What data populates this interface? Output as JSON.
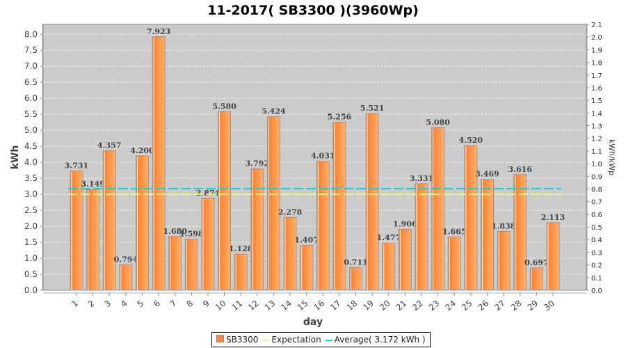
{
  "chart_data": {
    "type": "bar",
    "title": "11-2017( SB3300 )(3960Wp)",
    "xlabel": "day",
    "ylabel": "kWh",
    "y2label": "kWh/kWp",
    "categories": [
      "1",
      "2",
      "3",
      "4",
      "5",
      "6",
      "7",
      "8",
      "9",
      "10",
      "11",
      "12",
      "13",
      "14",
      "15",
      "16",
      "17",
      "18",
      "19",
      "20",
      "21",
      "22",
      "23",
      "24",
      "25",
      "26",
      "27",
      "28",
      "29",
      "30"
    ],
    "series": [
      {
        "name": "SB3300",
        "values": [
          3.731,
          3.149,
          4.357,
          0.794,
          4.2,
          7.923,
          1.68,
          1.598,
          2.874,
          5.58,
          1.128,
          3.792,
          5.424,
          2.278,
          1.407,
          4.031,
          5.256,
          0.711,
          5.521,
          1.477,
          1.906,
          3.331,
          5.08,
          1.665,
          4.52,
          3.469,
          1.838,
          3.616,
          0.697,
          2.113
        ],
        "color": "#ff8a3a"
      }
    ],
    "data_labels": [
      "3.731",
      "3.149",
      "4.357",
      "0.794",
      "4.200",
      "7.923",
      "1.680",
      "1.598",
      "2.874",
      "5.580",
      "1.128",
      "3.792",
      "5.424",
      "2.278",
      "1.407",
      "4.031",
      "5.256",
      "0.711",
      "5.521",
      "1.477",
      "1.906",
      "3.331",
      "5.080",
      "1.665",
      "4.520",
      "3.469",
      "1.838",
      "3.616",
      "0.697",
      "2.113"
    ],
    "lines": [
      {
        "name": "Expectation",
        "value": 3.0,
        "color": "#f0f080"
      },
      {
        "name": "Average( 3.172 kWh )",
        "value": 3.172,
        "color": "#20c8d0"
      }
    ],
    "ylim": [
      0,
      8.31
    ],
    "y2lim": [
      0,
      2.1
    ],
    "yticks": [
      "0.0",
      "0.5",
      "1.0",
      "1.5",
      "2.0",
      "2.5",
      "3.0",
      "3.5",
      "4.0",
      "4.5",
      "5.0",
      "5.5",
      "6.0",
      "6.5",
      "7.0",
      "7.5",
      "8.0"
    ],
    "y2ticks": [
      "0.0",
      "0.1",
      "0.2",
      "0.3",
      "0.4",
      "0.5",
      "0.6",
      "0.7",
      "0.8",
      "0.9",
      "1.0",
      "1.1",
      "1.2",
      "1.3",
      "1.4",
      "1.5",
      "1.6",
      "1.7",
      "1.8",
      "1.9",
      "2.0",
      "2.1"
    ],
    "grid": true,
    "legend": "bottom"
  }
}
